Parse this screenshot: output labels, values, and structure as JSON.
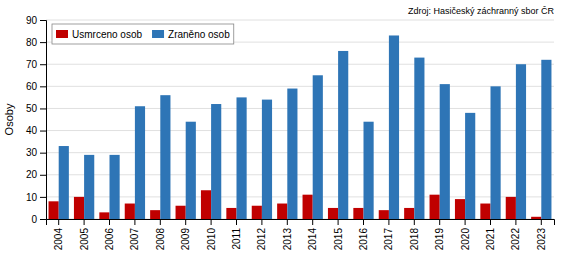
{
  "chart_data": {
    "type": "bar",
    "categories": [
      "2004",
      "2005",
      "2006",
      "2007",
      "2008",
      "2009",
      "2010",
      "2011",
      "2012",
      "2013",
      "2014",
      "2015",
      "2016",
      "2017",
      "2018",
      "2019",
      "2020",
      "2021",
      "2022",
      "2023"
    ],
    "series": [
      {
        "name": "Usmrceno osob",
        "color": "#c00000",
        "values": [
          8,
          10,
          3,
          7,
          4,
          6,
          13,
          5,
          6,
          7,
          11,
          5,
          5,
          4,
          5,
          11,
          9,
          7,
          10,
          1
        ]
      },
      {
        "name": "Zraněno osob",
        "color": "#2e75b6",
        "values": [
          33,
          29,
          29,
          51,
          56,
          44,
          52,
          55,
          54,
          59,
          65,
          76,
          44,
          83,
          73,
          61,
          48,
          60,
          70,
          72
        ]
      }
    ],
    "ylabel": "Osoby",
    "ylim": [
      0,
      90
    ],
    "yticks": [
      0,
      10,
      20,
      30,
      40,
      50,
      60,
      70,
      80,
      90
    ],
    "grid": true,
    "legend": "upper left",
    "annotations": [
      "Zdroj: Hasičeský záchranný sbor ČR"
    ]
  }
}
